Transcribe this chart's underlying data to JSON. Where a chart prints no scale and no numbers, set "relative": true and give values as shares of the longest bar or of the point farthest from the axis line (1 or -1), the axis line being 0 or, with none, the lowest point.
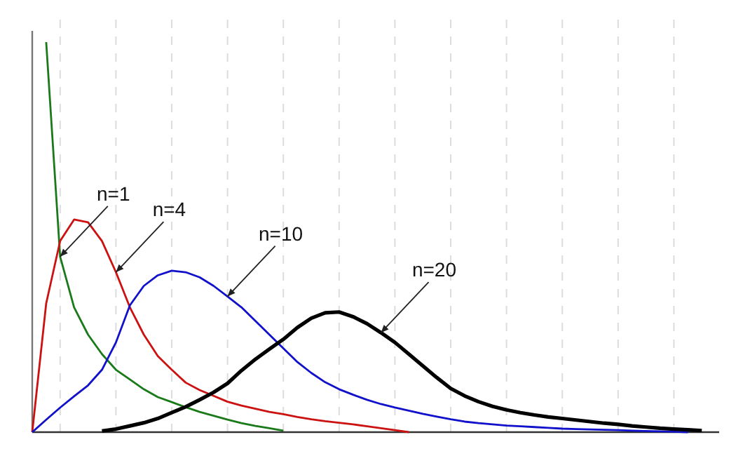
{
  "chart_data": {
    "type": "line",
    "relative": true,
    "grid": "x",
    "marker": "none",
    "line_style": "solid",
    "categories": [
      null,
      null,
      null,
      null,
      null,
      null,
      null,
      null,
      null,
      null,
      null,
      null,
      null,
      null,
      null,
      null,
      null,
      null,
      null,
      null,
      null,
      null,
      null,
      null,
      null,
      null,
      null,
      null,
      null,
      null,
      null,
      null,
      null,
      null,
      null,
      null,
      null,
      null,
      null,
      null,
      null,
      null,
      null,
      null,
      null,
      null,
      null,
      null,
      null,
      null
    ],
    "series": [
      {
        "color": "#1a7a1a",
        "values": [
          null,
          1.0,
          0.45,
          0.32,
          0.25,
          0.2,
          0.16,
          0.135,
          0.11,
          0.09,
          0.077,
          0.064,
          0.052,
          0.042,
          0.032,
          0.023,
          0.016,
          0.01,
          0.004,
          null,
          null,
          null,
          null,
          null,
          null,
          null,
          null,
          null,
          null,
          null,
          null,
          null,
          null,
          null,
          null,
          null,
          null,
          null,
          null,
          null,
          null,
          null,
          null,
          null,
          null,
          null,
          null,
          null,
          null,
          null
        ]
      },
      {
        "color": "#cc1111",
        "values": [
          0,
          0.33,
          0.49,
          0.545,
          0.538,
          0.49,
          0.41,
          0.32,
          0.25,
          0.195,
          0.16,
          0.127,
          0.108,
          0.093,
          0.078,
          0.068,
          0.06,
          0.052,
          0.046,
          0.039,
          0.033,
          0.028,
          0.024,
          0.02,
          0.015,
          0.01,
          0.005,
          0,
          null,
          null,
          null,
          null,
          null,
          null,
          null,
          null,
          null,
          null,
          null,
          null,
          null,
          null,
          null,
          null,
          null,
          null,
          null,
          null,
          null,
          null
        ]
      },
      {
        "color": "#1111cc",
        "values": [
          0,
          0.032,
          0.063,
          0.092,
          0.12,
          0.16,
          0.23,
          0.325,
          0.375,
          0.402,
          0.414,
          0.41,
          0.397,
          0.375,
          0.348,
          0.32,
          0.285,
          0.25,
          0.215,
          0.18,
          0.152,
          0.128,
          0.11,
          0.096,
          0.083,
          0.072,
          0.063,
          0.055,
          0.047,
          0.04,
          0.033,
          0.027,
          0.023,
          0.02,
          0.017,
          0.015,
          0.013,
          0.011,
          0.009,
          0.008,
          0.007,
          0.006,
          0.005,
          0.004,
          0.003,
          0.002,
          0.001,
          0,
          null,
          null
        ]
      },
      {
        "color": "#000000",
        "values": [
          null,
          null,
          null,
          null,
          null,
          0.003,
          0.008,
          0.016,
          0.024,
          0.035,
          0.05,
          0.065,
          0.083,
          0.102,
          0.125,
          0.158,
          0.187,
          0.213,
          0.238,
          0.268,
          0.292,
          0.306,
          0.308,
          0.296,
          0.278,
          0.255,
          0.23,
          0.2,
          0.17,
          0.14,
          0.112,
          0.093,
          0.078,
          0.066,
          0.057,
          0.05,
          0.044,
          0.039,
          0.035,
          0.031,
          0.027,
          0.023,
          0.02,
          0.016,
          0.013,
          0.01,
          0.008,
          0.006,
          0.004,
          null
        ]
      }
    ],
    "annotations": [
      "n=1",
      "n=4",
      "n=10",
      "n=20"
    ]
  }
}
